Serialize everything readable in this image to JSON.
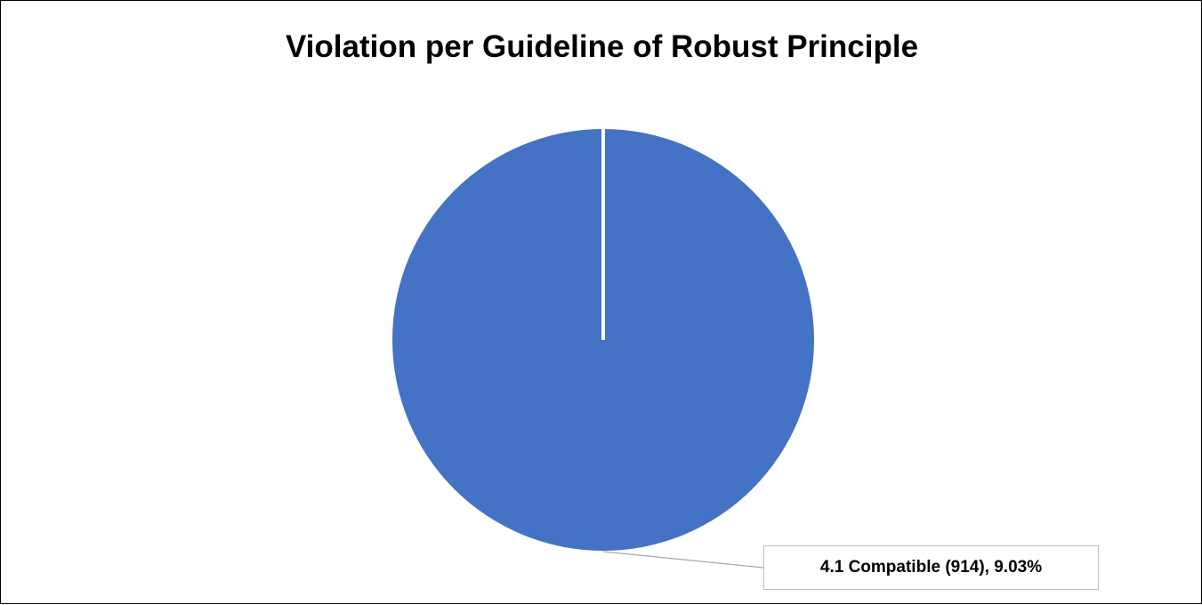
{
  "chart_data": {
    "type": "pie",
    "title": "Violation per Guideline of Robust Principle",
    "slices": [
      {
        "label": "4.1 Compatible",
        "value": 914,
        "percent": "9.03%",
        "color": "#4472c4",
        "data_label": "4.1 Compatible (914), 9.03%"
      }
    ],
    "legend": "none"
  }
}
